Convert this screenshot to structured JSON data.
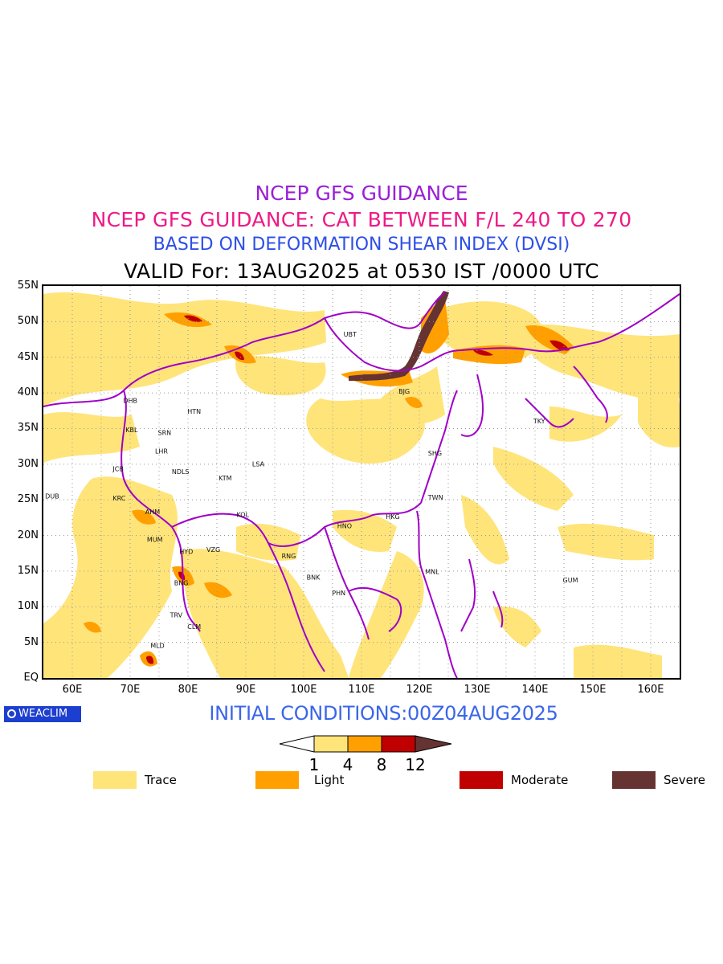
{
  "titles": {
    "line1": "NCEP GFS GUIDANCE",
    "line2": "NCEP GFS GUIDANCE: CAT BETWEEN F/L 240 TO 270",
    "line3": "BASED ON DEFORMATION SHEAR INDEX (DVSI)",
    "line4": "VALID For: 13AUG2025 at 0530 IST /0000 UTC"
  },
  "axes": {
    "lat_labels": [
      "55N",
      "50N",
      "45N",
      "40N",
      "35N",
      "30N",
      "25N",
      "20N",
      "15N",
      "10N",
      "5N",
      "EQ"
    ],
    "lon_labels": [
      "60E",
      "70E",
      "80E",
      "90E",
      "100E",
      "110E",
      "120E",
      "130E",
      "140E",
      "150E",
      "160E"
    ],
    "lon_range": [
      55,
      165
    ],
    "lat_range": [
      0,
      55
    ]
  },
  "cities": [
    {
      "name": "UBT",
      "lon": 106.9,
      "lat": 47.9
    },
    {
      "name": "BJG",
      "lon": 116.4,
      "lat": 39.9
    },
    {
      "name": "DHB",
      "lon": 68.8,
      "lat": 38.6
    },
    {
      "name": "HTN",
      "lon": 79.9,
      "lat": 37.1
    },
    {
      "name": "TKY",
      "lon": 139.7,
      "lat": 35.7
    },
    {
      "name": "KBL",
      "lon": 69.2,
      "lat": 34.5
    },
    {
      "name": "SRN",
      "lon": 74.8,
      "lat": 34.1
    },
    {
      "name": "LHR",
      "lon": 74.3,
      "lat": 31.5
    },
    {
      "name": "LSA",
      "lon": 91.1,
      "lat": 29.7
    },
    {
      "name": "SHG",
      "lon": 121.5,
      "lat": 31.2
    },
    {
      "name": "JCB",
      "lon": 67.0,
      "lat": 29.0
    },
    {
      "name": "NDLS",
      "lon": 77.2,
      "lat": 28.6
    },
    {
      "name": "KTM",
      "lon": 85.3,
      "lat": 27.7
    },
    {
      "name": "DUB",
      "lon": 55.3,
      "lat": 25.2
    },
    {
      "name": "KRC",
      "lon": 67.0,
      "lat": 24.9
    },
    {
      "name": "TWN",
      "lon": 121.5,
      "lat": 25.0
    },
    {
      "name": "AHM",
      "lon": 72.6,
      "lat": 23.0
    },
    {
      "name": "KOL",
      "lon": 88.4,
      "lat": 22.6
    },
    {
      "name": "HKG",
      "lon": 114.2,
      "lat": 22.3
    },
    {
      "name": "HNO",
      "lon": 105.8,
      "lat": 21.0
    },
    {
      "name": "MUM",
      "lon": 72.9,
      "lat": 19.1
    },
    {
      "name": "HYD",
      "lon": 78.5,
      "lat": 17.4
    },
    {
      "name": "VZG",
      "lon": 83.2,
      "lat": 17.7
    },
    {
      "name": "RNG",
      "lon": 96.2,
      "lat": 16.8
    },
    {
      "name": "BNK",
      "lon": 100.5,
      "lat": 13.8
    },
    {
      "name": "MNL",
      "lon": 121.0,
      "lat": 14.6
    },
    {
      "name": "GUM",
      "lon": 144.8,
      "lat": 13.4
    },
    {
      "name": "BNG",
      "lon": 77.6,
      "lat": 13.0
    },
    {
      "name": "PHN",
      "lon": 104.9,
      "lat": 11.6
    },
    {
      "name": "TRV",
      "lon": 76.9,
      "lat": 8.5
    },
    {
      "name": "CLM",
      "lon": 79.9,
      "lat": 6.9
    },
    {
      "name": "MLD",
      "lon": 73.5,
      "lat": 4.2
    }
  ],
  "colors": {
    "trace": "#ffe47a",
    "light": "#ffa000",
    "moderate": "#c00000",
    "severe": "#663333",
    "borders": "#a000c8",
    "grid": "#999999"
  },
  "colorbar": {
    "ticks": [
      "1",
      "4",
      "8",
      "12"
    ]
  },
  "legend": [
    {
      "label": "Trace",
      "color": "#ffe47a"
    },
    {
      "label": "Light",
      "color": "#ffa000"
    },
    {
      "label": "Moderate",
      "color": "#c00000"
    },
    {
      "label": "Severe",
      "color": "#663333"
    }
  ],
  "footer": {
    "logo_text": "WEACLIM",
    "initial_conditions": "INITIAL CONDITIONS:00Z04AUG2025"
  }
}
